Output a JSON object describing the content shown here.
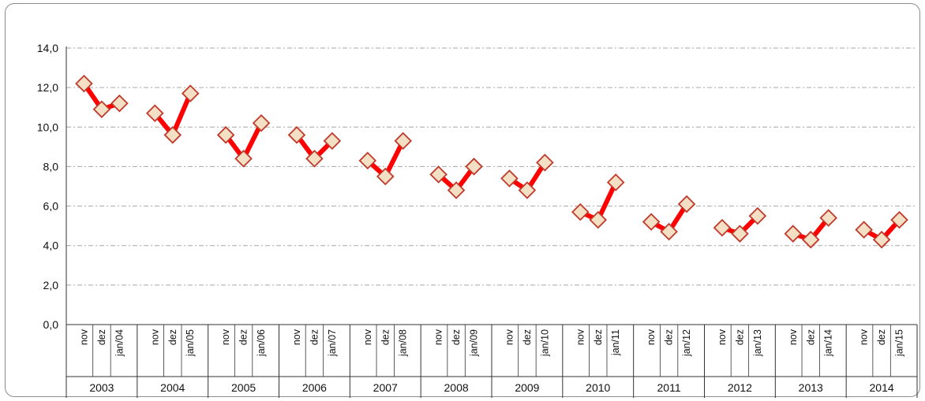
{
  "chart_data": {
    "type": "line",
    "title": "",
    "xlabel": "",
    "ylabel": "",
    "ylim": [
      0,
      14
    ],
    "y_ticks": [
      "0,0",
      "2,0",
      "4,0",
      "6,0",
      "8,0",
      "10,0",
      "12,0",
      "14,0"
    ],
    "grid": true,
    "legend": "none",
    "colors": {
      "line": "#ff0000",
      "marker_fill": "#f3dfc4",
      "marker_edge": "#c0392b",
      "grid": "#a6a6a6"
    },
    "groups": [
      {
        "year": "2003",
        "months": [
          "nov",
          "dez",
          "jan/04"
        ],
        "values": [
          12.2,
          10.9,
          11.2
        ]
      },
      {
        "year": "2004",
        "months": [
          "nov",
          "dez",
          "jan/05"
        ],
        "values": [
          10.7,
          9.6,
          11.7
        ]
      },
      {
        "year": "2005",
        "months": [
          "nov",
          "dez",
          "jan/06"
        ],
        "values": [
          9.6,
          8.4,
          10.2
        ]
      },
      {
        "year": "2006",
        "months": [
          "nov",
          "dez",
          "jan/07"
        ],
        "values": [
          9.6,
          8.4,
          9.3
        ]
      },
      {
        "year": "2007",
        "months": [
          "nov",
          "dez",
          "jan/08"
        ],
        "values": [
          8.3,
          7.5,
          9.3
        ]
      },
      {
        "year": "2008",
        "months": [
          "nov",
          "dez",
          "jan/09"
        ],
        "values": [
          7.6,
          6.8,
          8.0
        ]
      },
      {
        "year": "2009",
        "months": [
          "nov",
          "dez",
          "jan/10"
        ],
        "values": [
          7.4,
          6.8,
          8.2
        ]
      },
      {
        "year": "2010",
        "months": [
          "nov",
          "dez",
          "jan/11"
        ],
        "values": [
          5.7,
          5.3,
          7.2
        ]
      },
      {
        "year": "2011",
        "months": [
          "nov",
          "dez",
          "jan/12"
        ],
        "values": [
          5.2,
          4.7,
          6.1
        ]
      },
      {
        "year": "2012",
        "months": [
          "nov",
          "dez",
          "jan/13"
        ],
        "values": [
          4.9,
          4.6,
          5.5
        ]
      },
      {
        "year": "2013",
        "months": [
          "nov",
          "dez",
          "jan/14"
        ],
        "values": [
          4.6,
          4.3,
          5.4
        ]
      },
      {
        "year": "2014",
        "months": [
          "nov",
          "dez",
          "jan/15"
        ],
        "values": [
          4.8,
          4.3,
          5.3
        ]
      }
    ]
  }
}
